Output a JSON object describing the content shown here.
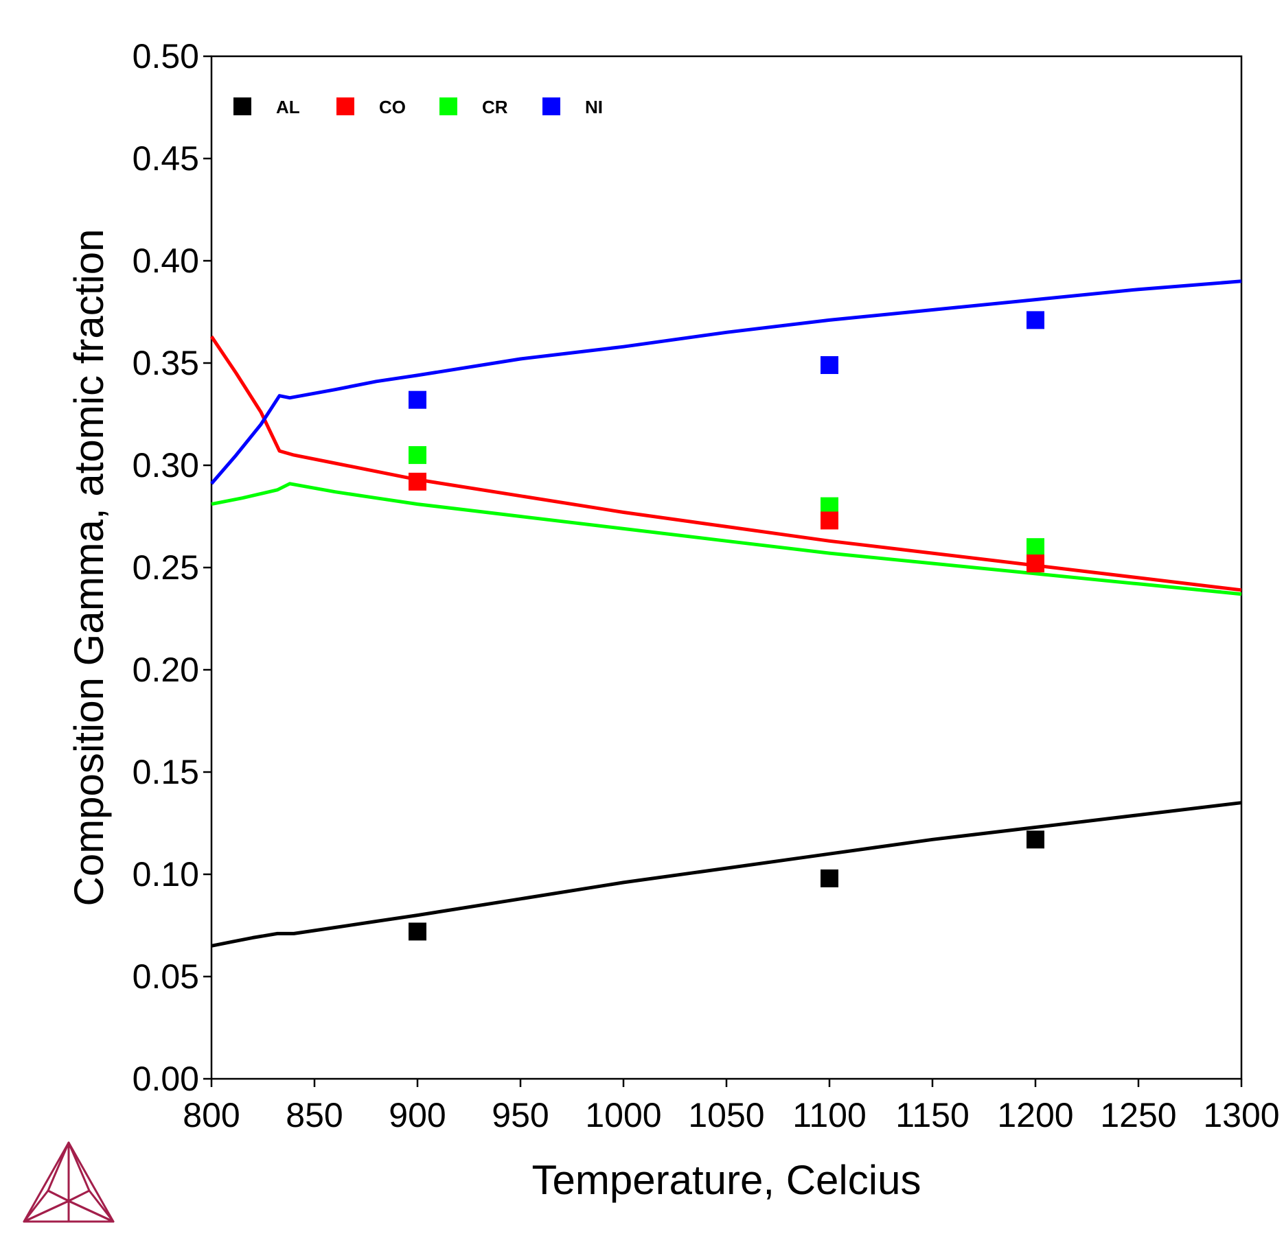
{
  "chart_data": {
    "type": "line",
    "title": "",
    "xlabel": "Temperature, Celcius",
    "ylabel": "Composition Gamma, atomic fraction",
    "xlim": [
      800,
      1300
    ],
    "ylim": [
      0.0,
      0.5
    ],
    "xticks": [
      "800",
      "850",
      "900",
      "950",
      "1000",
      "1050",
      "1100",
      "1150",
      "1200",
      "1250",
      "1300"
    ],
    "yticks": [
      "0.00",
      "0.05",
      "0.10",
      "0.15",
      "0.20",
      "0.25",
      "0.30",
      "0.35",
      "0.40",
      "0.45",
      "0.50"
    ],
    "grid": false,
    "legend_position": "top-left",
    "series": [
      {
        "name": "AL",
        "color": "#000000",
        "line": {
          "x": [
            800,
            810,
            820,
            832,
            840,
            860,
            880,
            900,
            950,
            1000,
            1050,
            1100,
            1150,
            1200,
            1250,
            1300
          ],
          "y": [
            0.065,
            0.067,
            0.069,
            0.071,
            0.071,
            0.074,
            0.077,
            0.08,
            0.088,
            0.096,
            0.103,
            0.11,
            0.117,
            0.123,
            0.129,
            0.135
          ]
        },
        "points": {
          "x": [
            900,
            1100,
            1200
          ],
          "y": [
            0.072,
            0.098,
            0.117
          ]
        }
      },
      {
        "name": "CO",
        "color": "#ff0000",
        "line": {
          "x": [
            800,
            812,
            824,
            833,
            840,
            860,
            880,
            900,
            950,
            1000,
            1050,
            1100,
            1150,
            1200,
            1250,
            1300
          ],
          "y": [
            0.363,
            0.345,
            0.326,
            0.307,
            0.305,
            0.301,
            0.297,
            0.293,
            0.285,
            0.277,
            0.27,
            0.263,
            0.257,
            0.251,
            0.245,
            0.239
          ]
        },
        "points": {
          "x": [
            900,
            1100,
            1200
          ],
          "y": [
            0.292,
            0.273,
            0.252
          ]
        }
      },
      {
        "name": "CR",
        "color": "#00ff00",
        "line": {
          "x": [
            800,
            815,
            832,
            838,
            860,
            880,
            900,
            950,
            1000,
            1050,
            1100,
            1150,
            1200,
            1250,
            1300
          ],
          "y": [
            0.281,
            0.284,
            0.288,
            0.291,
            0.287,
            0.284,
            0.281,
            0.275,
            0.269,
            0.263,
            0.257,
            0.252,
            0.247,
            0.242,
            0.237
          ]
        },
        "points": {
          "x": [
            900,
            1100,
            1200
          ],
          "y": [
            0.305,
            0.28,
            0.26
          ]
        }
      },
      {
        "name": "NI",
        "color": "#0000ff",
        "line": {
          "x": [
            800,
            812,
            824,
            833,
            838,
            860,
            880,
            900,
            950,
            1000,
            1050,
            1100,
            1150,
            1200,
            1250,
            1300
          ],
          "y": [
            0.291,
            0.305,
            0.32,
            0.334,
            0.333,
            0.337,
            0.341,
            0.344,
            0.352,
            0.358,
            0.365,
            0.371,
            0.376,
            0.381,
            0.386,
            0.39
          ]
        },
        "points": {
          "x": [
            900,
            1100,
            1200
          ],
          "y": [
            0.332,
            0.349,
            0.371
          ]
        }
      }
    ]
  },
  "logo": {
    "name": "thermo-calc-logo",
    "color": "#a31f4b"
  }
}
